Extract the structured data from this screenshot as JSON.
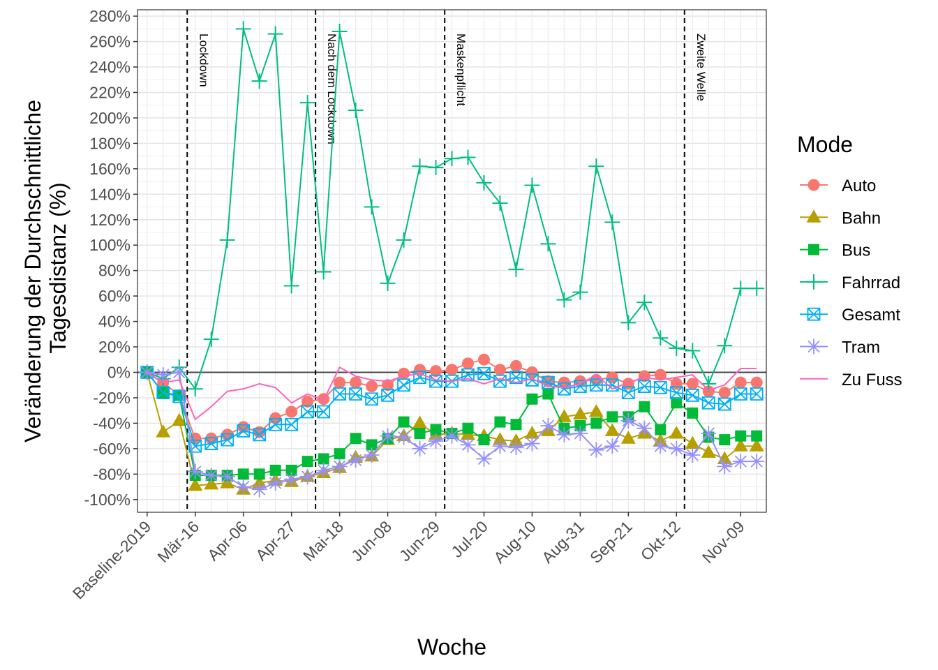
{
  "chart_data": {
    "type": "line",
    "title": "",
    "xlabel": "Woche",
    "ylabel_lines": [
      "Veränderung der Durchschnittliche",
      "Tagesdistanz (%)"
    ],
    "ylim": [
      -110,
      285
    ],
    "yticks": [
      -100,
      -80,
      -60,
      -40,
      -20,
      0,
      20,
      40,
      60,
      80,
      100,
      120,
      140,
      160,
      180,
      200,
      220,
      240,
      260,
      280
    ],
    "ytick_labels": [
      "-100%",
      "-80%",
      "-60%",
      "-40%",
      "-20%",
      "0%",
      "20%",
      "40%",
      "60%",
      "80%",
      "100%",
      "120%",
      "140%",
      "160%",
      "180%",
      "200%",
      "220%",
      "240%",
      "260%",
      "280%"
    ],
    "x_count": 39,
    "xticks": [
      {
        "i": 0,
        "label": "Baseline-2019"
      },
      {
        "i": 3,
        "label": "Mär-16"
      },
      {
        "i": 6,
        "label": "Apr-06"
      },
      {
        "i": 9,
        "label": "Apr-27"
      },
      {
        "i": 12,
        "label": "Mai-18"
      },
      {
        "i": 15,
        "label": "Jun-08"
      },
      {
        "i": 18,
        "label": "Jun-29"
      },
      {
        "i": 21,
        "label": "Jul-20"
      },
      {
        "i": 24,
        "label": "Aug-10"
      },
      {
        "i": 27,
        "label": "Aug-31"
      },
      {
        "i": 30,
        "label": "Sep-21"
      },
      {
        "i": 33,
        "label": "Okt-12"
      },
      {
        "i": 37,
        "label": "Nov-09"
      }
    ],
    "vlines": [
      {
        "x": 2.5,
        "label": "Lockdown"
      },
      {
        "x": 10.5,
        "label": "Nach dem Lockdown"
      },
      {
        "x": 18.55,
        "label": "Maskenpflicht"
      },
      {
        "x": 33.5,
        "label": "Zweite Welle"
      }
    ],
    "hline": 0,
    "grid": true,
    "legend": {
      "title": "Mode",
      "position": "right"
    },
    "series": [
      {
        "name": "Auto",
        "color": "#F8766D",
        "marker": "circle",
        "values": [
          0,
          -8,
          -18,
          -52,
          -52,
          -49,
          -43,
          -47,
          -36,
          -31,
          -23,
          -21,
          -8,
          -8,
          -11,
          -10,
          -1,
          2,
          1,
          2,
          7,
          10,
          2,
          5,
          0,
          -7,
          -8,
          -7,
          -6,
          -4,
          -9,
          -3,
          -2,
          -9,
          -9,
          -15,
          -16,
          -8,
          -8
        ]
      },
      {
        "name": "Bahn",
        "color": "#B79F00",
        "marker": "triangle",
        "values": [
          0,
          -47,
          -38,
          -89,
          -88,
          -87,
          -92,
          -87,
          -85,
          -86,
          -82,
          -79,
          -75,
          -67,
          -66,
          -53,
          -50,
          -40,
          -49,
          -48,
          -49,
          -50,
          -53,
          -54,
          -48,
          -46,
          -35,
          -33,
          -31,
          -46,
          -52,
          -48,
          -54,
          -48,
          -56,
          -63,
          -68,
          -58,
          -58
        ]
      },
      {
        "name": "Bus",
        "color": "#00BA38",
        "marker": "square",
        "values": [
          0,
          -16,
          -18,
          -81,
          -81,
          -81,
          -80,
          -80,
          -77,
          -77,
          -70,
          -68,
          -64,
          -52,
          -57,
          -52,
          -39,
          -48,
          -45,
          -48,
          -44,
          -53,
          -39,
          -41,
          -21,
          -17,
          -44,
          -42,
          -40,
          -35,
          -35,
          -27,
          -45,
          -24,
          -32,
          -51,
          -53,
          -50,
          -50
        ]
      },
      {
        "name": "Fahrrad",
        "color": "#00BF7D",
        "marker": "plus",
        "values": [
          0,
          -5,
          4,
          -13,
          26,
          104,
          270,
          229,
          266,
          68,
          212,
          79,
          268,
          206,
          130,
          70,
          104,
          162,
          161,
          168,
          169,
          149,
          133,
          81,
          147,
          101,
          57,
          63,
          162,
          118,
          39,
          55,
          27,
          19,
          17,
          -9,
          21,
          66,
          66
        ]
      },
      {
        "name": "Gesamt",
        "color": "#00B0F6",
        "marker": "square-x",
        "values": [
          0,
          -16,
          -19,
          -58,
          -56,
          -53,
          -46,
          -49,
          -41,
          -41,
          -31,
          -31,
          -17,
          -17,
          -21,
          -18,
          -10,
          -4,
          -7,
          -7,
          -2,
          -1,
          -7,
          -4,
          -6,
          -8,
          -13,
          -11,
          -10,
          -10,
          -16,
          -11,
          -12,
          -16,
          -18,
          -24,
          -25,
          -17,
          -17
        ]
      },
      {
        "name": "Tram",
        "color": "#9590FF",
        "marker": "asterisk",
        "values": [
          0,
          -2,
          0,
          -78,
          -81,
          -82,
          -90,
          -92,
          -87,
          -84,
          -82,
          -77,
          -74,
          -69,
          -65,
          -50,
          -51,
          -60,
          -54,
          -50,
          -57,
          -68,
          -58,
          -59,
          -56,
          -42,
          -49,
          -48,
          -61,
          -58,
          -38,
          -44,
          -58,
          -60,
          -65,
          -48,
          -74,
          -70,
          -70
        ]
      },
      {
        "name": "Zu Fuss",
        "color": "#FF62BC",
        "marker": "none",
        "values": [
          0,
          -8,
          -6,
          -37,
          -27,
          -15,
          -13,
          -9,
          -12,
          -24,
          -17,
          -22,
          4,
          -3,
          -6,
          -7,
          -3,
          -1,
          -6,
          -7,
          -5,
          -9,
          -5,
          -8,
          -5,
          -11,
          -12,
          -9,
          -2,
          -13,
          -8,
          -4,
          -6,
          -4,
          -2,
          -14,
          -10,
          3,
          3
        ]
      }
    ]
  }
}
